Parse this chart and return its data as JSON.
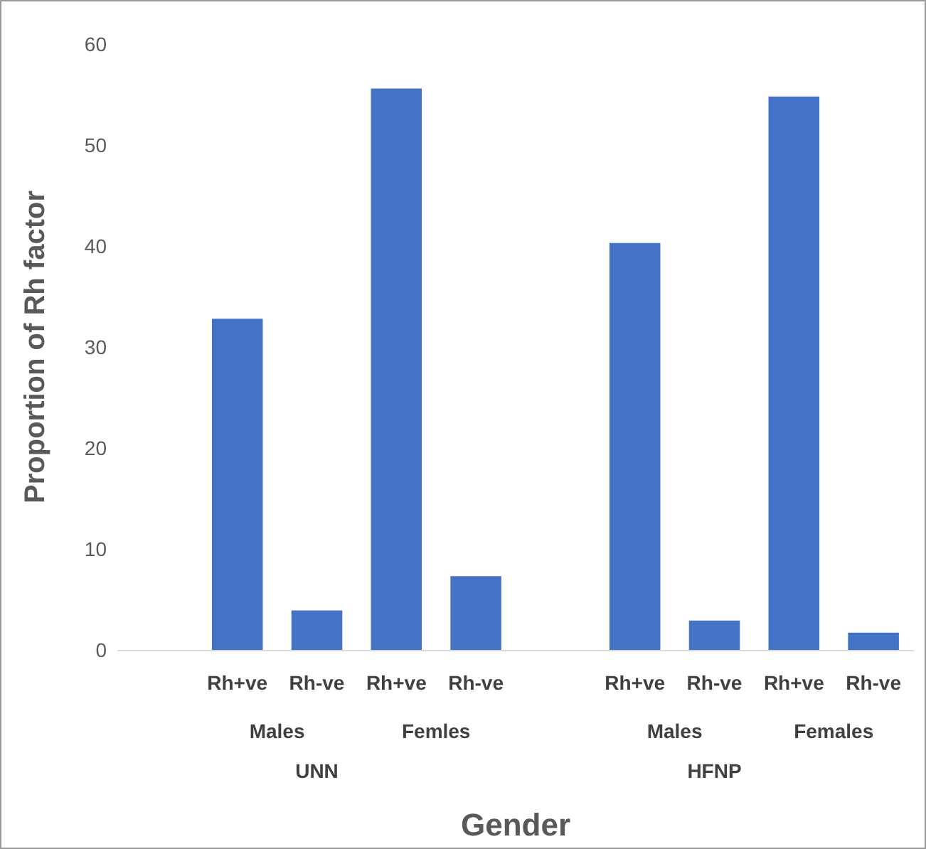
{
  "chart_data": {
    "type": "bar",
    "xlabel": "Gender",
    "ylabel": "Proportion of Rh factor",
    "categories": [
      null,
      "Rh+ve",
      "Rh-ve",
      "Rh+ve",
      "Rh-ve",
      null,
      "Rh+ve",
      "Rh-ve",
      "Rh+ve",
      "Rh-ve"
    ],
    "values": [
      null,
      32.8,
      3.9,
      55.6,
      7.3,
      null,
      40.3,
      2.9,
      54.8,
      1.7
    ],
    "color": "#4472c4",
    "ylim": [
      0,
      60
    ],
    "yticks": [
      0,
      10,
      20,
      30,
      40,
      50,
      60
    ],
    "grid": false,
    "annotations": [
      "Males",
      "Femles",
      "Males",
      "Females",
      "UNN",
      "HFNP"
    ]
  }
}
